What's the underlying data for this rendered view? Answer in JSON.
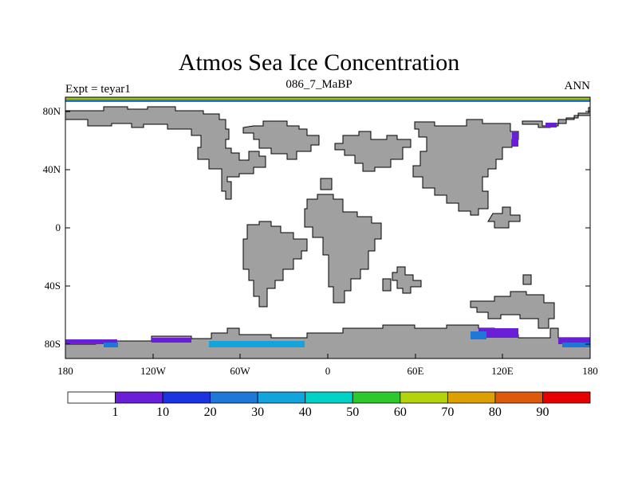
{
  "title": "Atmos Sea Ice Concentration",
  "left_label": "Expt = teyar1",
  "center_label": "086_7_MaBP",
  "right_label": "ANN",
  "colors": {
    "land": "#a0a0a0",
    "ocean": "#ffffff",
    "outline": "#000000"
  },
  "map": {
    "lat_ticks": [
      "80N",
      "40N",
      "0",
      "40S",
      "80S"
    ],
    "lon_ticks": [
      "180",
      "120W",
      "60W",
      "0",
      "60E",
      "120E",
      "180"
    ]
  },
  "colorbar": {
    "levels": [
      "1",
      "10",
      "20",
      "30",
      "40",
      "50",
      "60",
      "70",
      "80",
      "90"
    ],
    "colors": [
      "#ffffff",
      "#6a1ed8",
      "#1c34e0",
      "#1f78d8",
      "#14a4dd",
      "#00d2c8",
      "#2cc82c",
      "#b4d20e",
      "#dca000",
      "#dc5a0a",
      "#e60000"
    ]
  }
}
